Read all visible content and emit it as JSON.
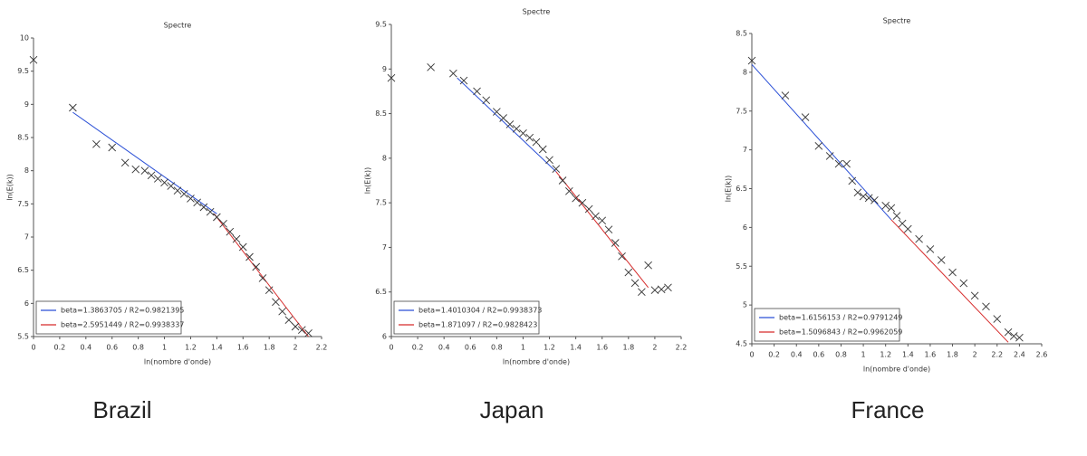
{
  "chart_data": [
    {
      "type": "scatter",
      "title": "Spectre",
      "xlabel": "ln(nombre d'onde)",
      "ylabel": "ln(E(k))",
      "caption": "Brazil",
      "xlim": [
        0,
        2.2
      ],
      "xticks": [
        0,
        0.2,
        0.4,
        0.6,
        0.8,
        1,
        1.2,
        1.4,
        1.6,
        1.8,
        2,
        2.2
      ],
      "ylim": [
        5.5,
        10
      ],
      "yticks": [
        5.5,
        6,
        6.5,
        7,
        7.5,
        8,
        8.5,
        9,
        9.5,
        10
      ],
      "legend": "lower left",
      "marker_color": "#333333",
      "x": [
        0,
        0.3,
        0.48,
        0.6,
        0.7,
        0.78,
        0.85,
        0.9,
        0.95,
        1.0,
        1.05,
        1.1,
        1.15,
        1.2,
        1.25,
        1.3,
        1.35,
        1.4,
        1.45,
        1.5,
        1.55,
        1.6,
        1.65,
        1.7,
        1.75,
        1.8,
        1.85,
        1.9,
        1.95,
        2.0,
        2.05,
        2.1
      ],
      "y": [
        9.67,
        8.95,
        8.4,
        8.35,
        8.12,
        8.02,
        8.0,
        7.93,
        7.88,
        7.82,
        7.77,
        7.7,
        7.65,
        7.58,
        7.52,
        7.45,
        7.38,
        7.3,
        7.2,
        7.08,
        6.97,
        6.85,
        6.7,
        6.55,
        6.38,
        6.2,
        6.02,
        5.88,
        5.75,
        5.65,
        5.6,
        5.55
      ],
      "fits": [
        {
          "name": "beta=1.3863705 / R2=0.9821395",
          "color": "#2a4fd6",
          "x": [
            0.3,
            1.4
          ],
          "y": [
            8.88,
            7.35
          ]
        },
        {
          "name": "beta=2.5951449 / R2=0.9938337",
          "color": "#d62a2a",
          "x": [
            1.38,
            2.1
          ],
          "y": [
            7.35,
            5.5
          ]
        }
      ]
    },
    {
      "type": "scatter",
      "title": "Spectre",
      "xlabel": "ln(nombre d'onde)",
      "ylabel": "ln(E(k))",
      "caption": "Japan",
      "xlim": [
        0,
        2.2
      ],
      "xticks": [
        0,
        0.2,
        0.4,
        0.6,
        0.8,
        1,
        1.2,
        1.4,
        1.6,
        1.8,
        2,
        2.2
      ],
      "ylim": [
        6,
        9.5
      ],
      "yticks": [
        6,
        6.5,
        7,
        7.5,
        8,
        8.5,
        9,
        9.5
      ],
      "legend": "lower left",
      "marker_color": "#333333",
      "x": [
        0,
        0.3,
        0.47,
        0.55,
        0.65,
        0.72,
        0.8,
        0.85,
        0.9,
        0.95,
        1.0,
        1.05,
        1.1,
        1.15,
        1.2,
        1.25,
        1.3,
        1.35,
        1.4,
        1.45,
        1.5,
        1.55,
        1.6,
        1.65,
        1.7,
        1.75,
        1.8,
        1.85,
        1.9,
        1.95,
        2.0,
        2.05,
        2.1
      ],
      "y": [
        8.9,
        9.02,
        8.95,
        8.87,
        8.75,
        8.65,
        8.52,
        8.45,
        8.38,
        8.33,
        8.28,
        8.23,
        8.18,
        8.1,
        7.98,
        7.88,
        7.75,
        7.63,
        7.55,
        7.5,
        7.43,
        7.35,
        7.3,
        7.2,
        7.05,
        6.9,
        6.72,
        6.6,
        6.5,
        6.8,
        6.52,
        6.53,
        6.55
      ],
      "fits": [
        {
          "name": "beta=1.4010304 / R2=0.9938373",
          "color": "#2a4fd6",
          "x": [
            0.5,
            1.25
          ],
          "y": [
            8.9,
            7.85
          ]
        },
        {
          "name": "beta=1.871097 / R2=0.9828423",
          "color": "#d62a2a",
          "x": [
            1.25,
            1.95
          ],
          "y": [
            7.85,
            6.55
          ]
        }
      ]
    },
    {
      "type": "scatter",
      "title": "Spectre",
      "xlabel": "ln(nombre d'onde)",
      "ylabel": "ln(E(k))",
      "caption": "France",
      "xlim": [
        0,
        2.6
      ],
      "xticks": [
        0,
        0.2,
        0.4,
        0.6,
        0.8,
        1,
        1.2,
        1.4,
        1.6,
        1.8,
        2,
        2.2,
        2.4,
        2.6
      ],
      "ylim": [
        4.5,
        8.5
      ],
      "yticks": [
        4.5,
        5,
        5.5,
        6,
        6.5,
        7,
        7.5,
        8,
        8.5
      ],
      "legend": "lower left",
      "marker_color": "#333333",
      "x": [
        0,
        0.3,
        0.48,
        0.6,
        0.7,
        0.78,
        0.85,
        0.9,
        0.95,
        1.0,
        1.05,
        1.1,
        1.2,
        1.25,
        1.3,
        1.35,
        1.4,
        1.5,
        1.6,
        1.7,
        1.8,
        1.9,
        2.0,
        2.1,
        2.2,
        2.3,
        2.35,
        2.4
      ],
      "y": [
        8.15,
        7.7,
        7.42,
        7.05,
        6.92,
        6.82,
        6.82,
        6.6,
        6.45,
        6.4,
        6.38,
        6.35,
        6.28,
        6.25,
        6.15,
        6.05,
        5.98,
        5.85,
        5.72,
        5.58,
        5.42,
        5.28,
        5.12,
        4.98,
        4.82,
        4.65,
        4.6,
        4.58
      ],
      "fits": [
        {
          "name": "beta=1.6156153 / R2=0.9791249",
          "color": "#2a4fd6",
          "x": [
            0,
            1.25
          ],
          "y": [
            8.1,
            6.1
          ]
        },
        {
          "name": "beta=1.5096843 / R2=0.9962059",
          "color": "#d62a2a",
          "x": [
            1.25,
            2.3
          ],
          "y": [
            6.1,
            4.52
          ]
        }
      ]
    }
  ]
}
